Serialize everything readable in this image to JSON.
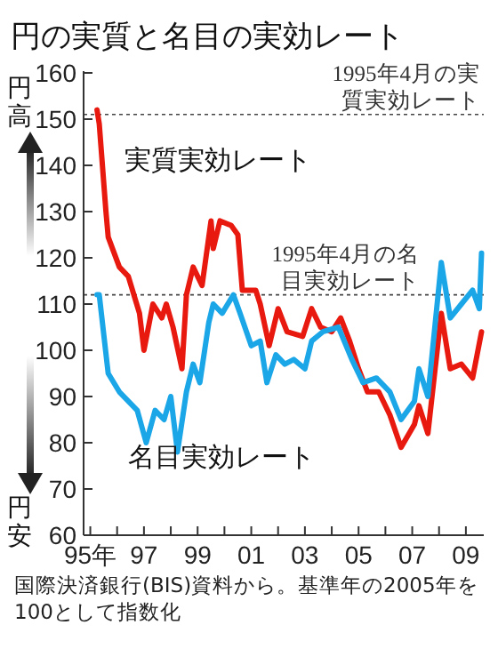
{
  "chart_data": {
    "type": "line",
    "title": "円の実質と名目の実効レート",
    "xlim": [
      "1994-10",
      "2009-09"
    ],
    "xticks": [
      {
        "value": "1995",
        "label": "95年"
      },
      {
        "value": "1996",
        "label": null
      },
      {
        "value": "1997",
        "label": "97"
      },
      {
        "value": "1998",
        "label": null
      },
      {
        "value": "1999",
        "label": "99"
      },
      {
        "value": "2000",
        "label": null
      },
      {
        "value": "2001",
        "label": "01"
      },
      {
        "value": "2002",
        "label": null
      },
      {
        "value": "2003",
        "label": "03"
      },
      {
        "value": "2004",
        "label": null
      },
      {
        "value": "2005",
        "label": "05"
      },
      {
        "value": "2006",
        "label": null
      },
      {
        "value": "2007",
        "label": "07"
      },
      {
        "value": "2008",
        "label": null
      },
      {
        "value": "2009",
        "label": "09"
      }
    ],
    "ylim": [
      60,
      160
    ],
    "yticks": [
      60,
      70,
      80,
      90,
      100,
      110,
      120,
      130,
      140,
      150,
      160
    ],
    "legend": false,
    "series": [
      {
        "name": "実質実効レート",
        "color": "#e8190f",
        "x": [
          "1995-04",
          "1995-05",
          "1995-08",
          "1995-09",
          "1996-02",
          "1996-06",
          "1996-11",
          "1997-01",
          "1997-05",
          "1997-09",
          "1997-11",
          "1998-02",
          "1998-06",
          "1998-08",
          "1998-11",
          "1999-03",
          "1999-07",
          "1999-08",
          "1999-11",
          "2000-04",
          "2000-07",
          "2000-09",
          "2001-03",
          "2001-05",
          "2001-09",
          "2002-01",
          "2002-05",
          "2002-12",
          "2003-04",
          "2003-08",
          "2004-01",
          "2004-05",
          "2004-09",
          "2005-01",
          "2005-05",
          "2005-10",
          "2006-03",
          "2006-08",
          "2007-02",
          "2007-04",
          "2007-08",
          "2008-02",
          "2008-06",
          "2008-11",
          "2009-04",
          "2009-08"
        ],
        "values": [
          152,
          149,
          130,
          124.5,
          118,
          116,
          108,
          100,
          110,
          107,
          110,
          105,
          96,
          112,
          118,
          114,
          128,
          122,
          128,
          127,
          125,
          113,
          113,
          110,
          101,
          109,
          104,
          103,
          109,
          105,
          104,
          107,
          102,
          96,
          91,
          91,
          86,
          79,
          84,
          88,
          82,
          108,
          96,
          97,
          94,
          104
        ]
      },
      {
        "name": "名目実効レート",
        "color": "#1ba6e8",
        "x": [
          "1995-04",
          "1995-05",
          "1995-09",
          "1996-02",
          "1996-10",
          "1997-02",
          "1997-06",
          "1997-10",
          "1998-01",
          "1998-04",
          "1998-08",
          "1998-11",
          "1999-02",
          "1999-06",
          "1999-08",
          "1999-12",
          "2000-05",
          "2000-08",
          "2001-01",
          "2001-05",
          "2001-08",
          "2001-12",
          "2002-04",
          "2002-08",
          "2003-01",
          "2003-04",
          "2003-09",
          "2004-04",
          "2004-10",
          "2005-03",
          "2005-09",
          "2006-03",
          "2006-08",
          "2007-02",
          "2007-04",
          "2007-08",
          "2008-02",
          "2008-06",
          "2008-11",
          "2009-04",
          "2009-07",
          "2009-08"
        ],
        "values": [
          112,
          112,
          95,
          91,
          87,
          80,
          87,
          85,
          90,
          78,
          91,
          97,
          93,
          106,
          110,
          108,
          112,
          108,
          101,
          102,
          93,
          99,
          97,
          98,
          96,
          102,
          104,
          105,
          98,
          93,
          94,
          91,
          85,
          89,
          96,
          90,
          119,
          107,
          110,
          113,
          109,
          121
        ]
      }
    ],
    "ref_lines": [
      {
        "axis": "y",
        "value": 151,
        "label": "1995年4月の実質実効レート",
        "line_style": "dotted"
      },
      {
        "axis": "y",
        "value": 112,
        "label": "1995年4月の名目実効レート",
        "line_style": "dotted"
      }
    ],
    "annotations": [
      "円高",
      "円安",
      "国際決済銀行(BIS)資料から。基準年の2005年を100として指数化"
    ]
  }
}
